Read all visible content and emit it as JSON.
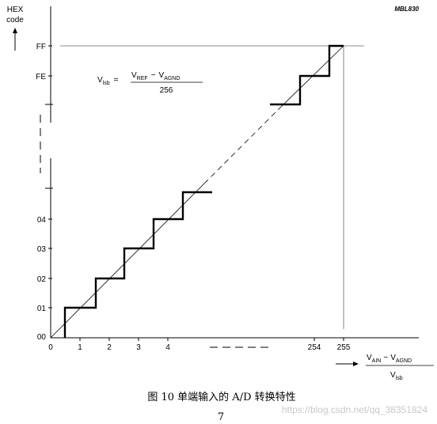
{
  "figure_id": "MBL830",
  "y_axis": {
    "title_line1": "HEX",
    "title_line2": "code"
  },
  "y_ticks": [
    "FF",
    "FE",
    "04",
    "03",
    "02",
    "01",
    "00"
  ],
  "x_ticks": [
    "0",
    "1",
    "2",
    "3",
    "4",
    "254",
    "255"
  ],
  "vlsb_formula": {
    "lhs": "V",
    "lhs_sub": "lsb",
    "equals": "=",
    "num_v1": "V",
    "num_sub1": "REF",
    "num_minus": "−",
    "num_v2": "V",
    "num_sub2": "AGND",
    "den": "256"
  },
  "x_formula": {
    "num_v1": "V",
    "num_sub1": "AIN",
    "num_minus": "−",
    "num_v2": "V",
    "num_sub2": "AGND",
    "den_v": "V",
    "den_sub": "lsb"
  },
  "caption": "图 10  单端输入的 A/D 转换特性",
  "page_number": "7",
  "watermark": "https://blog.csdn.net/qq_38351824"
}
